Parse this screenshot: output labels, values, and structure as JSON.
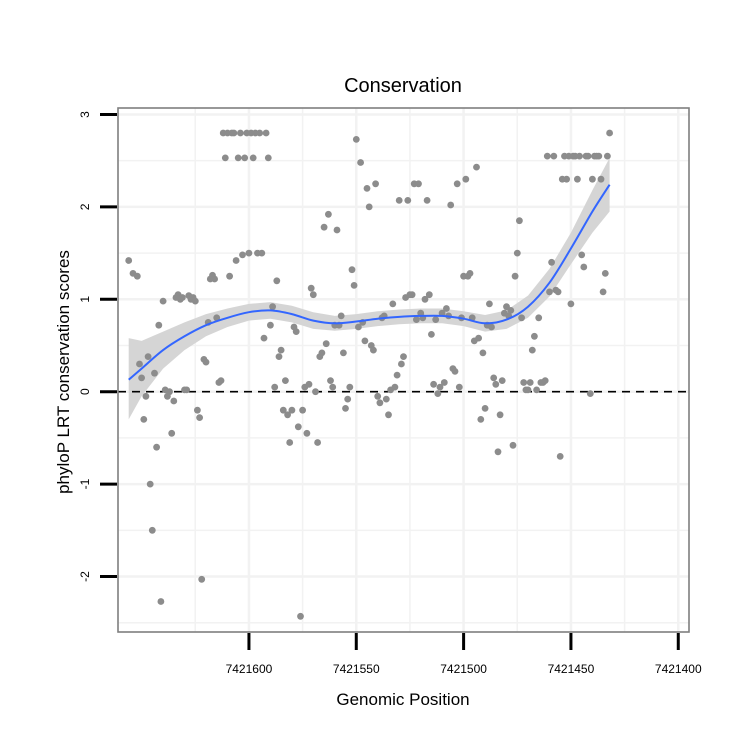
{
  "chart_data": {
    "type": "scatter",
    "title": "Conservation",
    "xlabel": "Genomic Position",
    "ylabel": "phyloP LRT conservation scores",
    "x_axis_reversed": true,
    "xlim": [
      7421661,
      7421395
    ],
    "ylim": [
      -2.6,
      3.07
    ],
    "x_ticks": [
      7421600,
      7421550,
      7421500,
      7421450,
      7421400
    ],
    "x_tick_labels": [
      "7421600",
      "7421550",
      "7421500",
      "7421450",
      "7421400"
    ],
    "y_ticks": [
      -2,
      -1,
      0,
      1,
      2,
      3
    ],
    "y_tick_labels": [
      "-2",
      "-1",
      "0",
      "1",
      "2",
      "3"
    ],
    "reference_line": {
      "y": 0,
      "style": "dashed"
    },
    "colors": {
      "points": "#8c8c8c",
      "smooth": "#3366ff",
      "band": "#d3d3d3",
      "frame": "#7f7f7f",
      "grid": "#f2f2f2"
    },
    "series": [
      {
        "name": "phyloP score",
        "kind": "points",
        "points": [
          [
            7421656,
            1.42
          ],
          [
            7421654,
            1.28
          ],
          [
            7421652,
            1.25
          ],
          [
            7421651,
            0.3
          ],
          [
            7421650,
            0.15
          ],
          [
            7421649,
            -0.3
          ],
          [
            7421648,
            -0.05
          ],
          [
            7421647,
            0.38
          ],
          [
            7421646,
            -1.0
          ],
          [
            7421645,
            -1.5
          ],
          [
            7421644,
            0.2
          ],
          [
            7421643,
            -0.6
          ],
          [
            7421642,
            0.72
          ],
          [
            7421641,
            -2.27
          ],
          [
            7421640,
            0.98
          ],
          [
            7421639,
            0.02
          ],
          [
            7421638,
            -0.05
          ],
          [
            7421637,
            0.0
          ],
          [
            7421636,
            -0.45
          ],
          [
            7421635,
            -0.1
          ],
          [
            7421634,
            1.02
          ],
          [
            7421633,
            1.05
          ],
          [
            7421632,
            1.0
          ],
          [
            7421631,
            1.02
          ],
          [
            7421630,
            0.02
          ],
          [
            7421629,
            0.02
          ],
          [
            7421628,
            1.04
          ],
          [
            7421627,
            1.0
          ],
          [
            7421626,
            1.02
          ],
          [
            7421625,
            0.98
          ],
          [
            7421624,
            -0.2
          ],
          [
            7421623,
            -0.28
          ],
          [
            7421622,
            -2.03
          ],
          [
            7421621,
            0.35
          ],
          [
            7421620,
            0.32
          ],
          [
            7421619,
            0.75
          ],
          [
            7421618,
            1.22
          ],
          [
            7421617,
            1.26
          ],
          [
            7421616,
            1.22
          ],
          [
            7421615,
            0.8
          ],
          [
            7421614,
            0.1
          ],
          [
            7421613,
            0.12
          ],
          [
            7421612,
            2.8
          ],
          [
            7421611,
            2.53
          ],
          [
            7421610,
            2.8
          ],
          [
            7421609,
            1.25
          ],
          [
            7421608,
            2.8
          ],
          [
            7421607,
            2.8
          ],
          [
            7421606,
            1.42
          ],
          [
            7421605,
            2.53
          ],
          [
            7421604,
            2.8
          ],
          [
            7421603,
            1.48
          ],
          [
            7421602,
            2.53
          ],
          [
            7421601,
            2.8
          ],
          [
            7421600,
            1.5
          ],
          [
            7421599,
            2.8
          ],
          [
            7421598,
            2.53
          ],
          [
            7421597,
            2.8
          ],
          [
            7421596,
            1.5
          ],
          [
            7421595,
            2.8
          ],
          [
            7421594,
            1.5
          ],
          [
            7421593,
            0.58
          ],
          [
            7421592,
            2.8
          ],
          [
            7421591,
            2.53
          ],
          [
            7421590,
            0.72
          ],
          [
            7421589,
            0.92
          ],
          [
            7421588,
            0.05
          ],
          [
            7421587,
            1.2
          ],
          [
            7421586,
            0.38
          ],
          [
            7421585,
            0.45
          ],
          [
            7421584,
            -0.2
          ],
          [
            7421583,
            0.12
          ],
          [
            7421582,
            -0.25
          ],
          [
            7421581,
            -0.55
          ],
          [
            7421580,
            -0.2
          ],
          [
            7421579,
            0.7
          ],
          [
            7421578,
            0.65
          ],
          [
            7421577,
            -0.38
          ],
          [
            7421576,
            -2.43
          ],
          [
            7421575,
            -0.2
          ],
          [
            7421574,
            0.05
          ],
          [
            7421573,
            -0.45
          ],
          [
            7421572,
            0.08
          ],
          [
            7421571,
            1.12
          ],
          [
            7421570,
            1.05
          ],
          [
            7421569,
            0.0
          ],
          [
            7421568,
            -0.55
          ],
          [
            7421567,
            0.38
          ],
          [
            7421566,
            0.42
          ],
          [
            7421565,
            1.78
          ],
          [
            7421564,
            0.52
          ],
          [
            7421563,
            1.92
          ],
          [
            7421562,
            0.12
          ],
          [
            7421561,
            0.05
          ],
          [
            7421560,
            0.72
          ],
          [
            7421559,
            1.75
          ],
          [
            7421558,
            0.72
          ],
          [
            7421557,
            0.82
          ],
          [
            7421556,
            0.42
          ],
          [
            7421555,
            -0.18
          ],
          [
            7421554,
            -0.08
          ],
          [
            7421553,
            0.05
          ],
          [
            7421552,
            1.32
          ],
          [
            7421551,
            1.15
          ],
          [
            7421550,
            2.73
          ],
          [
            7421549,
            0.7
          ],
          [
            7421548,
            2.48
          ],
          [
            7421547,
            0.75
          ],
          [
            7421546,
            0.55
          ],
          [
            7421545,
            2.2
          ],
          [
            7421544,
            2.0
          ],
          [
            7421543,
            0.5
          ],
          [
            7421542,
            0.45
          ],
          [
            7421541,
            2.25
          ],
          [
            7421540,
            -0.05
          ],
          [
            7421539,
            -0.12
          ],
          [
            7421538,
            0.8
          ],
          [
            7421537,
            0.82
          ],
          [
            7421536,
            -0.08
          ],
          [
            7421535,
            -0.25
          ],
          [
            7421534,
            0.02
          ],
          [
            7421533,
            0.95
          ],
          [
            7421532,
            0.05
          ],
          [
            7421531,
            0.18
          ],
          [
            7421530,
            2.07
          ],
          [
            7421529,
            0.3
          ],
          [
            7421528,
            0.38
          ],
          [
            7421527,
            1.02
          ],
          [
            7421526,
            2.07
          ],
          [
            7421525,
            1.05
          ],
          [
            7421524,
            1.05
          ],
          [
            7421523,
            2.25
          ],
          [
            7421522,
            0.78
          ],
          [
            7421521,
            2.25
          ],
          [
            7421520,
            0.85
          ],
          [
            7421519,
            0.8
          ],
          [
            7421518,
            1.0
          ],
          [
            7421517,
            2.07
          ],
          [
            7421516,
            1.05
          ],
          [
            7421515,
            0.62
          ],
          [
            7421514,
            0.08
          ],
          [
            7421513,
            0.78
          ],
          [
            7421512,
            -0.02
          ],
          [
            7421511,
            0.05
          ],
          [
            7421510,
            0.85
          ],
          [
            7421509,
            0.1
          ],
          [
            7421508,
            0.9
          ],
          [
            7421507,
            0.82
          ],
          [
            7421506,
            2.02
          ],
          [
            7421505,
            0.25
          ],
          [
            7421504,
            0.22
          ],
          [
            7421503,
            2.25
          ],
          [
            7421502,
            0.05
          ],
          [
            7421501,
            0.8
          ],
          [
            7421500,
            1.25
          ],
          [
            7421499,
            2.3
          ],
          [
            7421498,
            1.25
          ],
          [
            7421497,
            1.28
          ],
          [
            7421496,
            0.8
          ],
          [
            7421495,
            0.55
          ],
          [
            7421494,
            2.43
          ],
          [
            7421493,
            0.58
          ],
          [
            7421492,
            -0.3
          ],
          [
            7421491,
            0.42
          ],
          [
            7421490,
            -0.18
          ],
          [
            7421489,
            0.72
          ],
          [
            7421488,
            0.95
          ],
          [
            7421487,
            0.7
          ],
          [
            7421486,
            0.15
          ],
          [
            7421485,
            0.08
          ],
          [
            7421484,
            -0.65
          ],
          [
            7421483,
            -0.25
          ],
          [
            7421482,
            0.12
          ],
          [
            7421481,
            0.85
          ],
          [
            7421480,
            0.92
          ],
          [
            7421479,
            0.82
          ],
          [
            7421478,
            0.88
          ],
          [
            7421477,
            -0.58
          ],
          [
            7421476,
            1.25
          ],
          [
            7421475,
            1.5
          ],
          [
            7421474,
            1.85
          ],
          [
            7421473,
            0.8
          ],
          [
            7421472,
            0.1
          ],
          [
            7421471,
            0.02
          ],
          [
            7421470,
            0.02
          ],
          [
            7421469,
            0.1
          ],
          [
            7421468,
            0.45
          ],
          [
            7421467,
            0.6
          ],
          [
            7421466,
            0.02
          ],
          [
            7421465,
            0.8
          ],
          [
            7421464,
            0.1
          ],
          [
            7421463,
            0.1
          ],
          [
            7421462,
            0.12
          ],
          [
            7421461,
            2.55
          ],
          [
            7421460,
            1.08
          ],
          [
            7421459,
            1.4
          ],
          [
            7421458,
            2.55
          ],
          [
            7421457,
            1.1
          ],
          [
            7421456,
            1.08
          ],
          [
            7421455,
            -0.7
          ],
          [
            7421454,
            2.3
          ],
          [
            7421453,
            2.55
          ],
          [
            7421452,
            2.3
          ],
          [
            7421451,
            2.55
          ],
          [
            7421450,
            0.95
          ],
          [
            7421449,
            2.55
          ],
          [
            7421448,
            2.55
          ],
          [
            7421447,
            2.3
          ],
          [
            7421446,
            2.55
          ],
          [
            7421445,
            1.48
          ],
          [
            7421444,
            1.35
          ],
          [
            7421443,
            2.55
          ],
          [
            7421442,
            2.55
          ],
          [
            7421441,
            -0.02
          ],
          [
            7421440,
            2.3
          ],
          [
            7421439,
            2.55
          ],
          [
            7421438,
            2.55
          ],
          [
            7421437,
            2.55
          ],
          [
            7421436,
            2.3
          ],
          [
            7421435,
            1.08
          ],
          [
            7421434,
            1.28
          ],
          [
            7421433,
            2.55
          ],
          [
            7421432,
            2.8
          ]
        ]
      },
      {
        "name": "loess fit",
        "kind": "smooth",
        "x": [
          7421656,
          7421650,
          7421640,
          7421630,
          7421620,
          7421610,
          7421600,
          7421590,
          7421580,
          7421570,
          7421560,
          7421550,
          7421540,
          7421530,
          7421520,
          7421510,
          7421500,
          7421490,
          7421480,
          7421470,
          7421460,
          7421450,
          7421440,
          7421432
        ],
        "y": [
          0.13,
          0.25,
          0.45,
          0.6,
          0.72,
          0.8,
          0.86,
          0.88,
          0.84,
          0.77,
          0.74,
          0.76,
          0.79,
          0.81,
          0.82,
          0.82,
          0.79,
          0.74,
          0.78,
          0.92,
          1.18,
          1.55,
          1.95,
          2.24
        ],
        "lower": [
          -0.3,
          -0.05,
          0.25,
          0.45,
          0.6,
          0.7,
          0.77,
          0.79,
          0.75,
          0.68,
          0.66,
          0.68,
          0.71,
          0.73,
          0.74,
          0.74,
          0.71,
          0.65,
          0.68,
          0.8,
          1.03,
          1.38,
          1.72,
          1.95
        ],
        "upper": [
          0.58,
          0.55,
          0.65,
          0.75,
          0.84,
          0.9,
          0.95,
          0.97,
          0.93,
          0.86,
          0.82,
          0.84,
          0.87,
          0.89,
          0.9,
          0.9,
          0.87,
          0.83,
          0.88,
          1.04,
          1.33,
          1.72,
          2.18,
          2.53
        ]
      }
    ]
  }
}
